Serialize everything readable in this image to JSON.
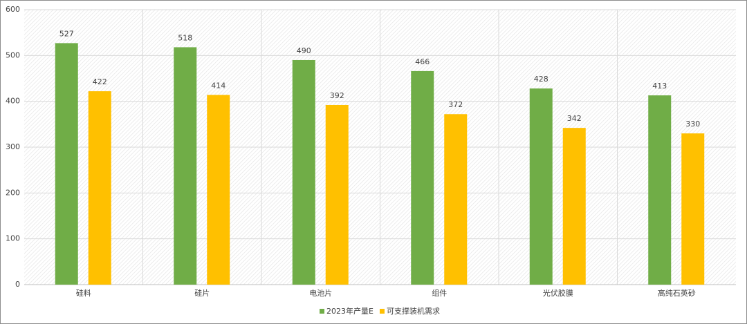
{
  "chart_data": {
    "type": "bar",
    "categories": [
      "硅料",
      "硅片",
      "电池片",
      "组件",
      "光伏胶膜",
      "高纯石英砂"
    ],
    "series": [
      {
        "name": "2023年产量E",
        "color": "#70ad47",
        "values": [
          527,
          518,
          490,
          466,
          428,
          413
        ]
      },
      {
        "name": "可支撑装机需求",
        "color": "#ffc000",
        "values": [
          422,
          414,
          392,
          372,
          342,
          330
        ]
      }
    ],
    "ylim": [
      0,
      600
    ],
    "yticks": [
      0,
      100,
      200,
      300,
      400,
      500,
      600
    ],
    "grid": true,
    "legend": "bottom"
  }
}
